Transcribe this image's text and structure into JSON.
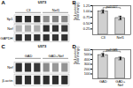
{
  "chart_data": [
    {
      "type": "blot",
      "panel": "A",
      "title": "U373",
      "categories": [
        "Sp1",
        "Nef",
        "GAPDH"
      ],
      "series": [
        {
          "name": "C3",
          "values": [
            [
              0.15,
              0.18,
              0.2
            ],
            [
              0.7,
              0.65,
              0.68
            ],
            [
              0.18,
              0.2,
              0.19
            ]
          ]
        },
        {
          "name": "Nef1",
          "values": [
            [
              0.55,
              0.5,
              0.52
            ],
            [
              0.18,
              0.2,
              0.22
            ],
            [
              0.18,
              0.2,
              0.19
            ]
          ]
        }
      ]
    },
    {
      "type": "bar",
      "panel": "B",
      "categories": [
        "C3",
        "Nef1"
      ],
      "values": [
        1.0,
        0.72
      ],
      "errors": [
        0.07,
        0.08
      ],
      "dot_values": [
        [
          1.05,
          0.97,
          0.98
        ],
        [
          0.78,
          0.68,
          0.7
        ]
      ],
      "ylabel": "Sp1 protein\n(fold change)",
      "annotation": "p=0.027",
      "color": "#d0d0d0",
      "ylim": [
        0,
        1.25
      ],
      "yticks": [
        0.25,
        {
          "value": 0.5,
          "label": "0.50"
        },
        0.75,
        {
          "value": 1.0,
          "label": "1.00"
        },
        1.25
      ],
      "grid": false
    },
    {
      "type": "blot",
      "panel": "C",
      "title": "U373",
      "categories": [
        "Nef",
        "β-actin"
      ],
      "series": [
        {
          "name": "GAD",
          "values": [
            [
              0.18,
              0.2,
              0.22
            ],
            [
              0.18,
              0.18,
              0.18
            ]
          ]
        },
        {
          "name": "GAD+Nef",
          "values": [
            [
              0.55,
              0.6,
              0.58
            ],
            [
              0.18,
              0.18,
              0.18
            ]
          ]
        }
      ]
    },
    {
      "type": "bar",
      "panel": "D",
      "categories": [
        "GAD",
        "GAD+\nNef"
      ],
      "values": [
        490,
        420
      ],
      "errors": [
        35,
        28
      ],
      "dot_values": [
        [
          510,
          480,
          490
        ],
        [
          440,
          400,
          420
        ]
      ],
      "ylabel": "Sp1 protein\n(fold change)",
      "annotation": "p=0.045",
      "color": "#d0d0d0",
      "ylim": [
        0,
        600
      ],
      "yticks": [
        100,
        200,
        300,
        400,
        500,
        600
      ],
      "grid": false
    }
  ]
}
